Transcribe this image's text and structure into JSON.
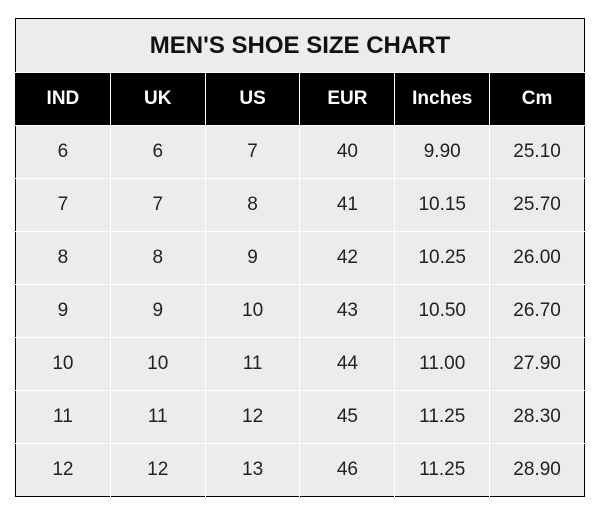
{
  "title": "MEN'S SHOE SIZE CHART",
  "headers": [
    "IND",
    "UK",
    "US",
    "EUR",
    "Inches",
    "Cm"
  ],
  "rows": [
    [
      "6",
      "6",
      "7",
      "40",
      "9.90",
      "25.10"
    ],
    [
      "7",
      "7",
      "8",
      "41",
      "10.15",
      "25.70"
    ],
    [
      "8",
      "8",
      "9",
      "42",
      "10.25",
      "26.00"
    ],
    [
      "9",
      "9",
      "10",
      "43",
      "10.50",
      "26.70"
    ],
    [
      "10",
      "10",
      "11",
      "44",
      "11.00",
      "27.90"
    ],
    [
      "11",
      "11",
      "12",
      "45",
      "11.25",
      "28.30"
    ],
    [
      "12",
      "12",
      "13",
      "46",
      "11.25",
      "28.90"
    ]
  ],
  "colors": {
    "header_bg": "#000000",
    "cell_bg": "#ececec",
    "grid": "#ffffff"
  }
}
